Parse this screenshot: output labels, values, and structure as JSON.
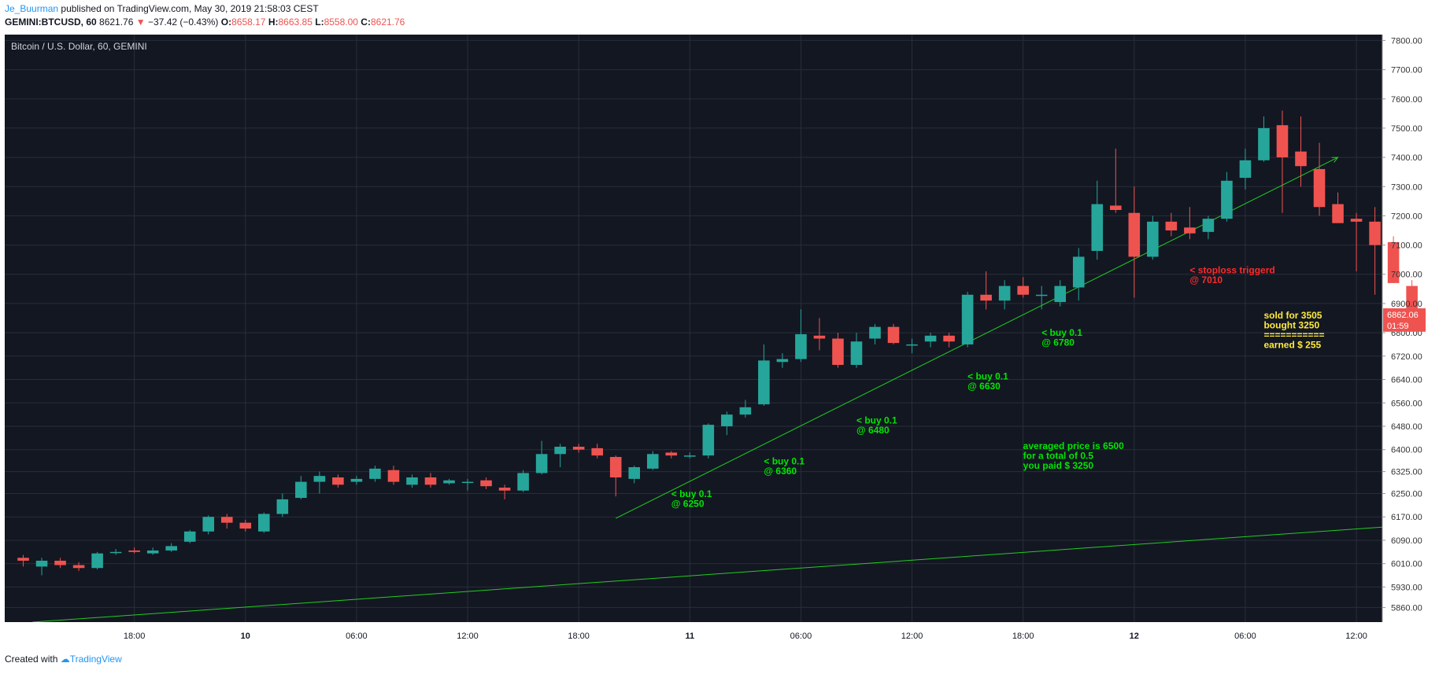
{
  "header": {
    "author": "Je_Buurman",
    "published_text": "published on TradingView.com, May 30, 2019 21:58:03 CEST",
    "symbol": "GEMINI:BTCUSD, 60",
    "last": "8621.76",
    "change_arrow": "▼",
    "change": "−37.42 (−0.43%)",
    "o_label": "O:",
    "o_val": "8658.17",
    "h_label": "H:",
    "h_val": "8663.85",
    "l_label": "L:",
    "l_val": "8558.00",
    "c_label": "C:",
    "c_val": "8621.76"
  },
  "chart_title": "Bitcoin / U.S. Dollar, 60, GEMINI",
  "footer": {
    "created_with": "Created with",
    "brand": "TradingView"
  },
  "colors": {
    "bg": "#131722",
    "up": "#26a69a",
    "down": "#ef5350",
    "grid": "#2a2e39",
    "axis_text": "#b2b5be",
    "annot_green": "#00e600",
    "annot_red": "#ff2a2a",
    "annot_yellow": "#ffeb3b",
    "trend": "#22cc22"
  },
  "chart_data": {
    "type": "candlestick",
    "y_axis": {
      "range": [
        5810,
        7820
      ],
      "ticks": [
        5860,
        5930,
        6010,
        6090,
        6170,
        6250,
        6325,
        6400,
        6480,
        6560,
        6640,
        6720,
        6800,
        6900,
        7000,
        7100,
        7200,
        7300,
        7400,
        7500,
        7600,
        7700,
        7800
      ],
      "tick_labels": [
        "5860.00",
        "5930.00",
        "6010.00",
        "6090.00",
        "6170.00",
        "6250.00",
        "6325.00",
        "6400.00",
        "6480.00",
        "6560.00",
        "6640.00",
        "6720.00",
        "6800.00",
        "6900.00",
        "7000.00",
        "7100.00",
        "7200.00",
        "7300.00",
        "7400.00",
        "7500.00",
        "7600.00",
        "7700.00",
        "7800.00"
      ]
    },
    "x_axis": {
      "hours_range": [
        -19,
        55.4
      ],
      "ticks": [
        {
          "h": -12,
          "label": "18:00"
        },
        {
          "h": -6,
          "label": "10"
        },
        {
          "h": 0,
          "label": "06:00"
        },
        {
          "h": 6,
          "label": "12:00"
        },
        {
          "h": 12,
          "label": "18:00"
        },
        {
          "h": 18,
          "label": "11"
        },
        {
          "h": 24,
          "label": "06:00"
        },
        {
          "h": 30,
          "label": "12:00"
        },
        {
          "h": 36,
          "label": "18:00"
        },
        {
          "h": 42,
          "label": "12"
        },
        {
          "h": 48,
          "label": "06:00"
        },
        {
          "h": 54,
          "label": "12:00"
        }
      ],
      "bold_ticks": [
        "10",
        "11",
        "12"
      ]
    },
    "candles": [
      [
        6030,
        6020,
        6040,
        6000
      ],
      [
        6000,
        6020,
        6030,
        5970
      ],
      [
        6020,
        6005,
        6030,
        5995
      ],
      [
        6005,
        5995,
        6015,
        5985
      ],
      [
        5995,
        6045,
        6050,
        5990
      ],
      [
        6050,
        6050,
        6060,
        6040
      ],
      [
        6055,
        6050,
        6065,
        6045
      ],
      [
        6045,
        6055,
        6065,
        6040
      ],
      [
        6055,
        6070,
        6080,
        6050
      ],
      [
        6085,
        6120,
        6125,
        6080
      ],
      [
        6120,
        6170,
        6175,
        6110
      ],
      [
        6170,
        6150,
        6180,
        6130
      ],
      [
        6150,
        6130,
        6160,
        6120
      ],
      [
        6120,
        6180,
        6185,
        6115
      ],
      [
        6180,
        6230,
        6250,
        6170
      ],
      [
        6235,
        6290,
        6310,
        6230
      ],
      [
        6290,
        6310,
        6325,
        6250
      ],
      [
        6305,
        6280,
        6315,
        6270
      ],
      [
        6290,
        6300,
        6310,
        6280
      ],
      [
        6300,
        6335,
        6345,
        6290
      ],
      [
        6330,
        6290,
        6345,
        6280
      ],
      [
        6280,
        6305,
        6315,
        6270
      ],
      [
        6305,
        6280,
        6320,
        6270
      ],
      [
        6285,
        6295,
        6300,
        6280
      ],
      [
        6290,
        6290,
        6300,
        6260
      ],
      [
        6295,
        6275,
        6305,
        6265
      ],
      [
        6270,
        6260,
        6280,
        6230
      ],
      [
        6260,
        6320,
        6330,
        6255
      ],
      [
        6320,
        6385,
        6430,
        6315
      ],
      [
        6385,
        6410,
        6420,
        6340
      ],
      [
        6410,
        6400,
        6420,
        6390
      ],
      [
        6405,
        6380,
        6420,
        6370
      ],
      [
        6375,
        6305,
        6380,
        6240
      ],
      [
        6300,
        6340,
        6345,
        6285
      ],
      [
        6335,
        6385,
        6395,
        6330
      ],
      [
        6390,
        6380,
        6395,
        6370
      ],
      [
        6380,
        6380,
        6390,
        6370
      ],
      [
        6380,
        6485,
        6490,
        6370
      ],
      [
        6480,
        6520,
        6530,
        6450
      ],
      [
        6520,
        6545,
        6570,
        6510
      ],
      [
        6555,
        6705,
        6760,
        6550
      ],
      [
        6700,
        6710,
        6730,
        6680
      ],
      [
        6710,
        6795,
        6880,
        6700
      ],
      [
        6790,
        6780,
        6850,
        6740
      ],
      [
        6780,
        6690,
        6800,
        6680
      ],
      [
        6690,
        6770,
        6800,
        6680
      ],
      [
        6780,
        6820,
        6830,
        6760
      ],
      [
        6820,
        6765,
        6830,
        6760
      ],
      [
        6760,
        6760,
        6780,
        6730
      ],
      [
        6770,
        6790,
        6800,
        6750
      ],
      [
        6790,
        6770,
        6800,
        6750
      ],
      [
        6760,
        6930,
        6940,
        6750
      ],
      [
        6930,
        6910,
        7010,
        6880
      ],
      [
        6910,
        6960,
        6980,
        6880
      ],
      [
        6960,
        6930,
        6990,
        6920
      ],
      [
        6930,
        6930,
        6960,
        6880
      ],
      [
        6905,
        6960,
        6980,
        6890
      ],
      [
        6955,
        7060,
        7090,
        6910
      ],
      [
        7080,
        7240,
        7320,
        7050
      ],
      [
        7235,
        7220,
        7430,
        7210
      ],
      [
        7210,
        7060,
        7300,
        6920
      ],
      [
        7060,
        7180,
        7200,
        7050
      ],
      [
        7180,
        7150,
        7210,
        7130
      ],
      [
        7160,
        7140,
        7230,
        7120
      ],
      [
        7145,
        7190,
        7200,
        7120
      ],
      [
        7190,
        7320,
        7350,
        7180
      ],
      [
        7330,
        7390,
        7430,
        7290
      ],
      [
        7390,
        7500,
        7540,
        7385
      ],
      [
        7510,
        7400,
        7560,
        7210
      ],
      [
        7420,
        7370,
        7540,
        7300
      ],
      [
        7360,
        7230,
        7450,
        7200
      ],
      [
        7240,
        7175,
        7280,
        7180
      ],
      [
        7190,
        7180,
        7210,
        7010
      ],
      [
        7180,
        7100,
        7230,
        6930
      ],
      [
        7110,
        6970,
        7130,
        6970
      ],
      [
        6960,
        6870,
        6980,
        6830
      ]
    ],
    "candle_start_hour": -18,
    "trendlines": [
      {
        "from": [
          -17.5,
          5810
        ],
        "to": [
          55.4,
          6135
        ]
      },
      {
        "from": [
          14,
          6165
        ],
        "to": [
          53,
          7400
        ]
      }
    ],
    "price_labels": [
      {
        "text": "6862.06",
        "price": 6862
      },
      {
        "text": "01:59",
        "price": 6825
      }
    ]
  },
  "annotations": [
    {
      "lines": [
        "< buy 0.1",
        "@ 6250"
      ],
      "h": 17,
      "price": 6238,
      "color": "green"
    },
    {
      "lines": [
        "< buy 0.1",
        "@ 6360"
      ],
      "h": 22,
      "price": 6350,
      "color": "green"
    },
    {
      "lines": [
        "< buy 0.1",
        "@ 6480"
      ],
      "h": 27,
      "price": 6490,
      "color": "green"
    },
    {
      "lines": [
        "< buy 0.1",
        "@ 6630"
      ],
      "h": 33,
      "price": 6640,
      "color": "green"
    },
    {
      "lines": [
        "< buy 0.1",
        "@ 6780"
      ],
      "h": 37,
      "price": 6790,
      "color": "green"
    },
    {
      "lines": [
        "averaged price is 6500",
        "for a total of 0.5",
        "you paid $ 3250"
      ],
      "h": 36,
      "price": 6402,
      "color": "green"
    },
    {
      "lines": [
        "< stoploss triggerd",
        "@ 7010"
      ],
      "h": 45,
      "price": 7004,
      "color": "red"
    },
    {
      "lines": [
        "sold for 3505",
        "bought  3250",
        "===========",
        "earned $ 255"
      ],
      "h": 49,
      "price": 6848,
      "color": "yellow"
    }
  ]
}
